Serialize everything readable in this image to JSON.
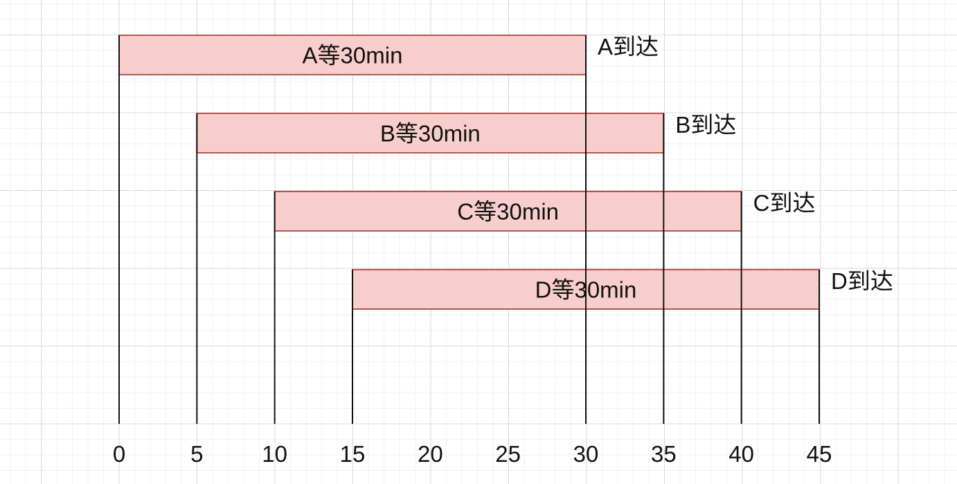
{
  "chart_data": {
    "type": "bar",
    "orientation": "horizontal",
    "title": "",
    "xlabel": "",
    "ylabel": "",
    "xlim": [
      0,
      45
    ],
    "x_ticks": [
      "0",
      "5",
      "10",
      "15",
      "20",
      "25",
      "30",
      "35",
      "40",
      "45"
    ],
    "grid": true,
    "series": [
      {
        "label": "A等30min",
        "start": 0,
        "end": 30,
        "arrival_label": "A到达"
      },
      {
        "label": "B等30min",
        "start": 5,
        "end": 35,
        "arrival_label": "B到达"
      },
      {
        "label": "C等30min",
        "start": 10,
        "end": 40,
        "arrival_label": "C到达"
      },
      {
        "label": "D等30min",
        "start": 15,
        "end": 45,
        "arrival_label": "D到达"
      }
    ]
  },
  "colors": {
    "bar_fill": "#f8cecc",
    "bar_stroke": "#b85450",
    "line": "#111111",
    "grid_major": "#d9d9d9",
    "grid_minor": "#f1f1f1"
  }
}
